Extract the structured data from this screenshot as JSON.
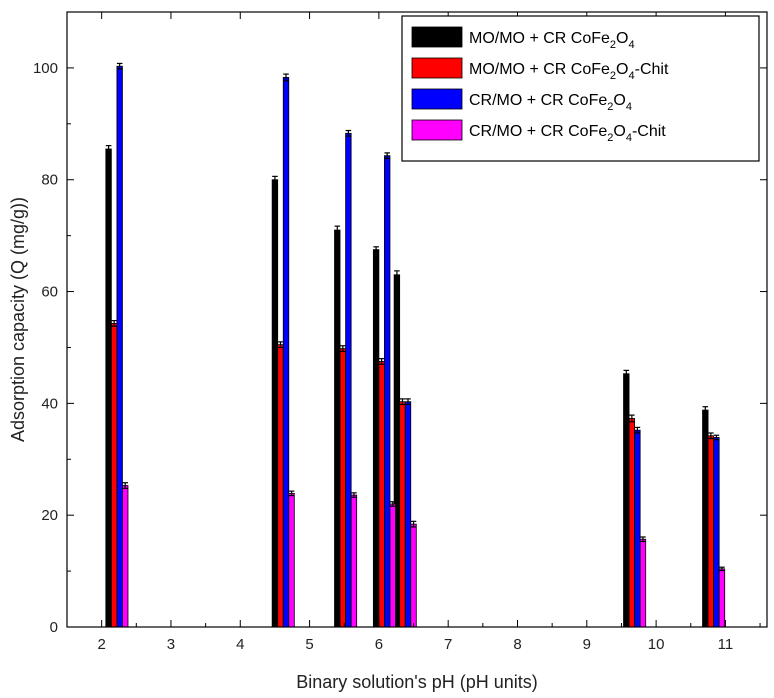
{
  "chart_data": {
    "type": "bar",
    "xlabel": "Binary solution's pH (pH units)",
    "ylabel": "Adsorption capacity (Q (mg/g))",
    "xlim": [
      1.5,
      11.6
    ],
    "ylim": [
      0,
      110
    ],
    "x_ticks": [
      2,
      3,
      4,
      5,
      6,
      7,
      8,
      9,
      10,
      11
    ],
    "y_ticks": [
      0,
      20,
      40,
      60,
      80,
      100
    ],
    "grid": false,
    "legend_position": "top-right",
    "bar_width": 0.08,
    "series": [
      {
        "name": "MO/MO + CR CoFe2O4",
        "legend_parts": [
          [
            "MO/MO + CR CoFe",
            ""
          ],
          [
            "2",
            "sub"
          ],
          [
            "O",
            ""
          ],
          [
            "4",
            "sub"
          ]
        ],
        "color": "#000000",
        "points": [
          {
            "x": 2.1,
            "y": 85.5,
            "err": 0.6
          },
          {
            "x": 4.5,
            "y": 80.0,
            "err": 0.6
          },
          {
            "x": 5.4,
            "y": 71.0,
            "err": 0.7
          },
          {
            "x": 5.96,
            "y": 67.5,
            "err": 0.5
          },
          {
            "x": 6.26,
            "y": 63.0,
            "err": 0.7
          },
          {
            "x": 9.57,
            "y": 45.3,
            "err": 0.6
          },
          {
            "x": 10.71,
            "y": 38.8,
            "err": 0.6
          }
        ]
      },
      {
        "name": "MO/MO + CR CoFe2O4-Chit",
        "legend_parts": [
          [
            "MO/MO + CR CoFe",
            ""
          ],
          [
            "2",
            "sub"
          ],
          [
            "O",
            ""
          ],
          [
            "4",
            "sub"
          ],
          [
            "-Chit",
            ""
          ]
        ],
        "color": "#ff0000",
        "points": [
          {
            "x": 2.18,
            "y": 54.3,
            "err": 0.5
          },
          {
            "x": 4.58,
            "y": 50.5,
            "err": 0.5
          },
          {
            "x": 5.48,
            "y": 49.8,
            "err": 0.5
          },
          {
            "x": 6.04,
            "y": 47.5,
            "err": 0.5
          },
          {
            "x": 6.34,
            "y": 40.3,
            "err": 0.5
          },
          {
            "x": 9.65,
            "y": 37.3,
            "err": 0.6
          },
          {
            "x": 10.79,
            "y": 34.2,
            "err": 0.5
          }
        ]
      },
      {
        "name": "CR/MO + CR CoFe2O4",
        "legend_parts": [
          [
            "CR/MO + CR CoFe",
            ""
          ],
          [
            "2",
            "sub"
          ],
          [
            "O",
            ""
          ],
          [
            "4",
            "sub"
          ]
        ],
        "color": "#0000ff",
        "points": [
          {
            "x": 2.26,
            "y": 100.3,
            "err": 0.5
          },
          {
            "x": 4.66,
            "y": 98.3,
            "err": 0.6
          },
          {
            "x": 5.56,
            "y": 88.3,
            "err": 0.5
          },
          {
            "x": 6.12,
            "y": 84.3,
            "err": 0.5
          },
          {
            "x": 6.42,
            "y": 40.3,
            "err": 0.5
          },
          {
            "x": 9.73,
            "y": 35.2,
            "err": 0.5
          },
          {
            "x": 10.87,
            "y": 33.9,
            "err": 0.4
          }
        ]
      },
      {
        "name": "CR/MO + CR CoFe2O4-Chit",
        "legend_parts": [
          [
            "CR/MO + CR CoFe",
            ""
          ],
          [
            "2",
            "sub"
          ],
          [
            "O",
            ""
          ],
          [
            "4",
            "sub"
          ],
          [
            "-Chit",
            ""
          ]
        ],
        "color": "#ff00ff",
        "points": [
          {
            "x": 2.34,
            "y": 25.3,
            "err": 0.5
          },
          {
            "x": 4.74,
            "y": 23.9,
            "err": 0.4
          },
          {
            "x": 5.64,
            "y": 23.6,
            "err": 0.4
          },
          {
            "x": 6.2,
            "y": 22.0,
            "err": 0.4
          },
          {
            "x": 6.5,
            "y": 18.4,
            "err": 0.5
          },
          {
            "x": 9.81,
            "y": 15.7,
            "err": 0.4
          },
          {
            "x": 10.95,
            "y": 10.4,
            "err": 0.3
          }
        ]
      }
    ]
  }
}
